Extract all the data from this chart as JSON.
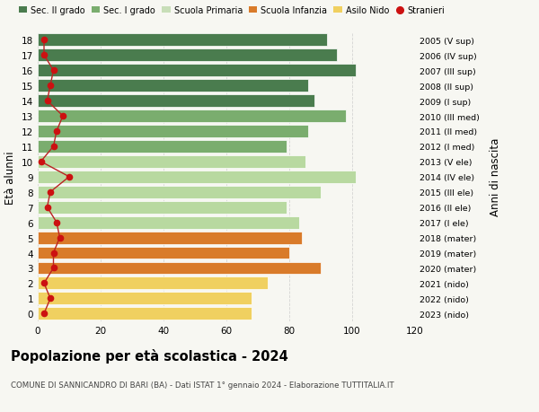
{
  "ages": [
    18,
    17,
    16,
    15,
    14,
    13,
    12,
    11,
    10,
    9,
    8,
    7,
    6,
    5,
    4,
    3,
    2,
    1,
    0
  ],
  "bar_values": [
    92,
    95,
    101,
    86,
    88,
    98,
    86,
    79,
    85,
    101,
    90,
    79,
    83,
    84,
    80,
    90,
    73,
    68,
    68
  ],
  "bar_colors": [
    "#4a7c4e",
    "#4a7c4e",
    "#4a7c4e",
    "#4a7c4e",
    "#4a7c4e",
    "#7aad6e",
    "#7aad6e",
    "#7aad6e",
    "#b8d9a0",
    "#b8d9a0",
    "#b8d9a0",
    "#b8d9a0",
    "#b8d9a0",
    "#d97b2a",
    "#d97b2a",
    "#d97b2a",
    "#f0d060",
    "#f0d060",
    "#f0d060"
  ],
  "stranieri_values": [
    2,
    2,
    5,
    4,
    3,
    8,
    6,
    5,
    1,
    10,
    4,
    3,
    6,
    7,
    5,
    5,
    2,
    4,
    2
  ],
  "right_labels": [
    "2005 (V sup)",
    "2006 (IV sup)",
    "2007 (III sup)",
    "2008 (II sup)",
    "2009 (I sup)",
    "2010 (III med)",
    "2011 (II med)",
    "2012 (I med)",
    "2013 (V ele)",
    "2014 (IV ele)",
    "2015 (III ele)",
    "2016 (II ele)",
    "2017 (I ele)",
    "2018 (mater)",
    "2019 (mater)",
    "2020 (mater)",
    "2021 (nido)",
    "2022 (nido)",
    "2023 (nido)"
  ],
  "legend_labels": [
    "Sec. II grado",
    "Sec. I grado",
    "Scuola Primaria",
    "Scuola Infanzia",
    "Asilo Nido",
    "Stranieri"
  ],
  "legend_colors": [
    "#4a7c4e",
    "#7aad6e",
    "#c8deb8",
    "#d97b2a",
    "#f0d060",
    "#cc1111"
  ],
  "ylabel": "Età alunni",
  "right_ylabel": "Anni di nascita",
  "title": "Popolazione per età scolastica - 2024",
  "subtitle": "COMUNE DI SANNICANDRO DI BARI (BA) - Dati ISTAT 1° gennaio 2024 - Elaborazione TUTTITALIA.IT",
  "xlim": [
    0,
    120
  ],
  "xticks": [
    0,
    20,
    40,
    60,
    80,
    100,
    120
  ],
  "bg_color": "#f7f7f2",
  "stranieri_color": "#cc1111",
  "stranieri_line_color": "#bb2222"
}
